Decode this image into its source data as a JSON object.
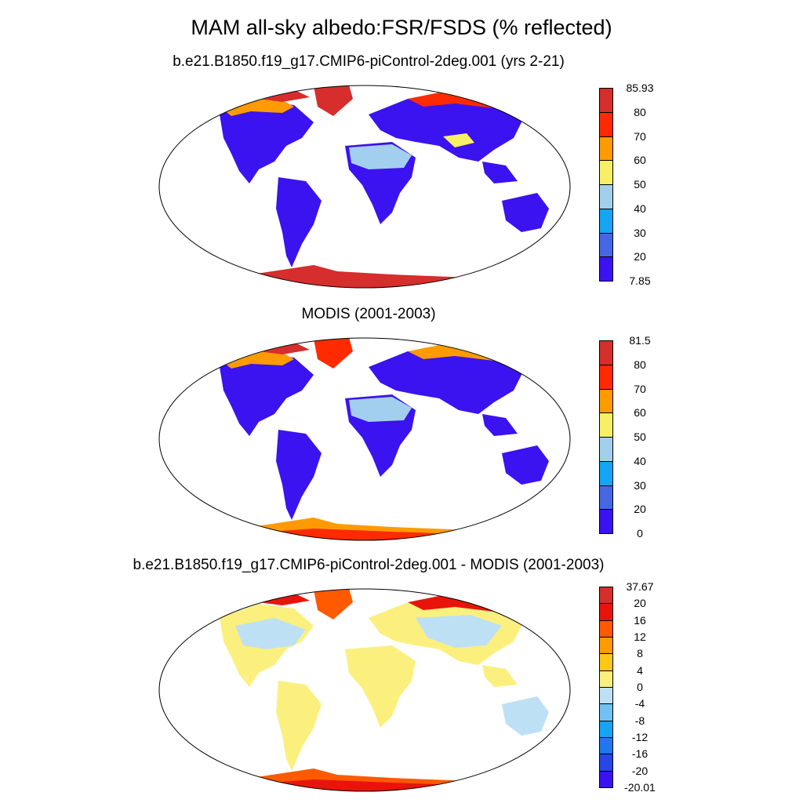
{
  "figure": {
    "title": "MAM all-sky albedo:FSR/FSDS (% reflected)"
  },
  "panels": [
    {
      "title": "b.e21.B1850.f19_g17.CMIP6-piControl-2deg.001 (yrs 2-21)",
      "colorbar": {
        "labels": [
          "85.93",
          "80",
          "70",
          "60",
          "50",
          "40",
          "30",
          "20",
          "7.85"
        ],
        "colors": [
          "#d62d2d",
          "#ff2a00",
          "#ff9a00",
          "#f7ef66",
          "#a2cfee",
          "#14a5f5",
          "#4567e3",
          "#3b12f0"
        ]
      }
    },
    {
      "title": "MODIS (2001-2003)",
      "colorbar": {
        "labels": [
          "81.5",
          "80",
          "70",
          "60",
          "50",
          "40",
          "30",
          "20",
          "0"
        ],
        "colors": [
          "#d62d2d",
          "#ff2a00",
          "#ff9a00",
          "#f7ef66",
          "#a2cfee",
          "#14a5f5",
          "#4567e3",
          "#3b12f0"
        ]
      }
    },
    {
      "title": "b.e21.B1850.f19_g17.CMIP6-piControl-2deg.001 - MODIS (2001-2003)",
      "colorbar": {
        "labels": [
          "37.67",
          "20",
          "16",
          "12",
          "8",
          "4",
          "0",
          "-4",
          "-8",
          "-12",
          "-16",
          "-20",
          "-20.01"
        ],
        "colors": [
          "#d62d2d",
          "#e8140c",
          "#ff5a00",
          "#ff9a00",
          "#fcc61a",
          "#fbf07e",
          "#bde0f5",
          "#72c1f2",
          "#14a5f5",
          "#1e78ee",
          "#2846e6",
          "#3b12f0"
        ]
      }
    }
  ],
  "map_colors": {
    "land_low": "#3b12f0",
    "ice": "#d62d2d",
    "snow_mid": "#ff9a00",
    "desert": "#a2cfee",
    "bright": "#f7ef66",
    "diff_neutral": "#fbf07e",
    "diff_neg": "#bde0f5",
    "diff_pos": "#ff5a00",
    "diff_high": "#e8140c"
  }
}
